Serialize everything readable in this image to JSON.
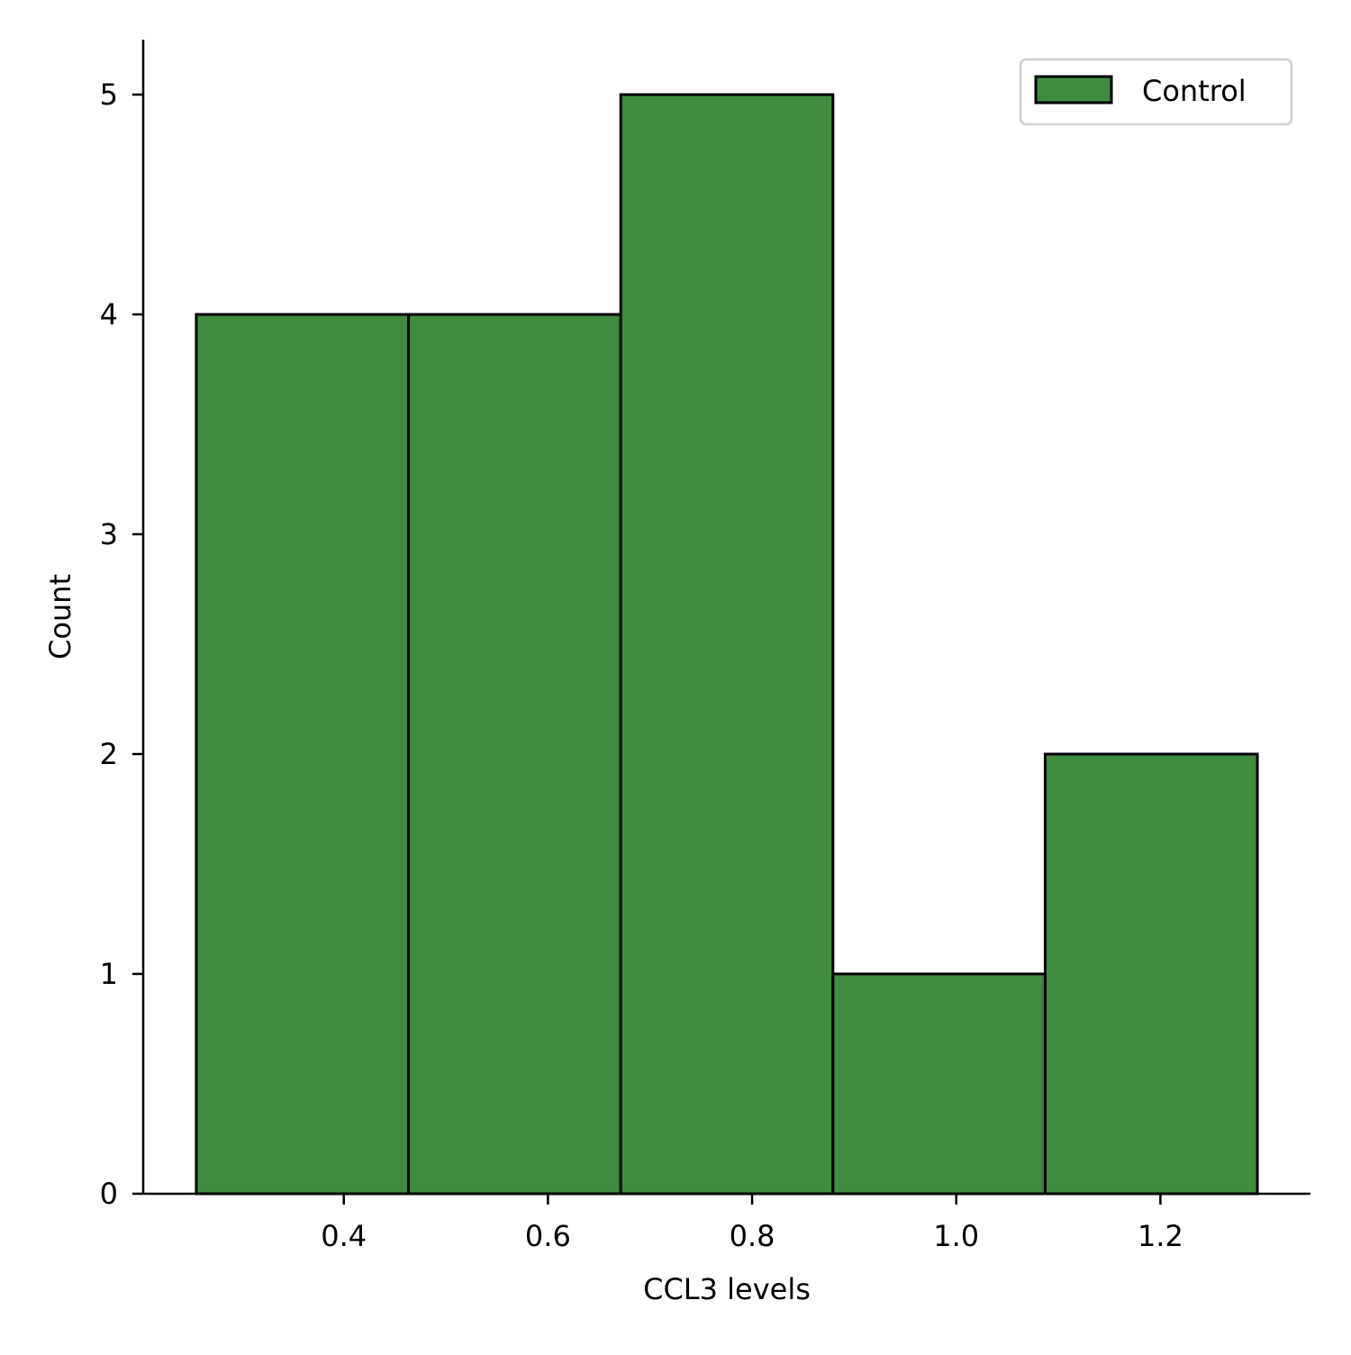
{
  "chart_data": {
    "type": "bar",
    "subtype": "histogram",
    "title": "",
    "xlabel": "CCL3 levels",
    "ylabel": "Count",
    "bin_edges": [
      0.2555,
      0.4634,
      0.6713,
      0.8792,
      1.0871,
      1.295
    ],
    "series": [
      {
        "name": "Control",
        "counts": [
          4,
          4,
          5,
          1,
          2
        ],
        "color": "#418b40",
        "edgecolor": "#000000"
      }
    ],
    "xlim": [
      0.2035,
      1.347
    ],
    "ylim": [
      0,
      5.25
    ],
    "xticks": [
      0.4,
      0.6,
      0.8,
      1.0,
      1.2
    ],
    "xtick_labels": [
      "0.4",
      "0.6",
      "0.8",
      "1.0",
      "1.2"
    ],
    "yticks": [
      0,
      1,
      2,
      3,
      4,
      5
    ],
    "ytick_labels": [
      "0",
      "1",
      "2",
      "3",
      "4",
      "5"
    ],
    "grid": false,
    "spines": "left-bottom",
    "legend": {
      "position": "top-right",
      "entries": [
        "Control"
      ]
    }
  }
}
